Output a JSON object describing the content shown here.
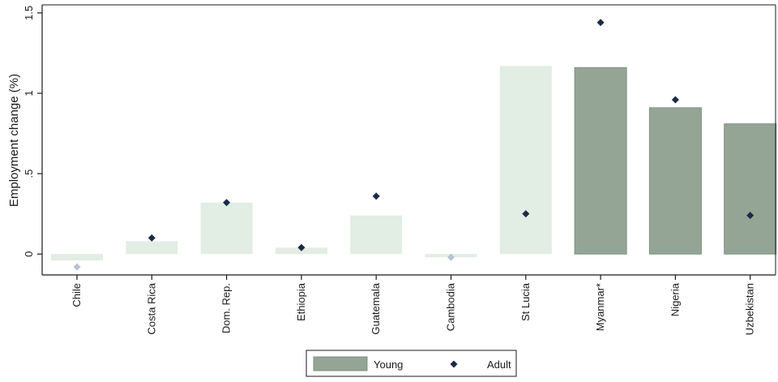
{
  "chart_data": {
    "type": "bar",
    "ylabel": "Employment change (%)",
    "ylim": [
      -0.13,
      1.55
    ],
    "yticks": [
      0,
      0.5,
      1,
      1.5
    ],
    "ytick_labels": [
      "0",
      ".5",
      "1",
      "1.5"
    ],
    "grid": false,
    "legend_position": "bottom-center",
    "categories": [
      "Chile",
      "Costa Rica",
      "Dom. Rep.",
      "Ethiopia",
      "Guatemala",
      "Cambodia",
      "St Lucia",
      "Myanmar*",
      "Nigeria",
      "Uzbekistan"
    ],
    "series": [
      {
        "name": "Young",
        "mark": "bar",
        "values": [
          -0.04,
          0.08,
          0.32,
          0.04,
          0.24,
          -0.02,
          1.17,
          1.16,
          0.91,
          0.81
        ],
        "highlighted": [
          false,
          false,
          false,
          false,
          false,
          false,
          false,
          true,
          true,
          true
        ]
      },
      {
        "name": "Adult",
        "mark": "diamond",
        "values": [
          -0.08,
          0.1,
          0.32,
          0.04,
          0.36,
          -0.02,
          0.25,
          1.44,
          0.96,
          0.24
        ],
        "highlighted": [
          false,
          true,
          true,
          true,
          true,
          false,
          true,
          true,
          true,
          true
        ]
      }
    ],
    "colors": {
      "bar_highlight": "#94a596",
      "bar_highlight_stroke": "#7e9082",
      "bar_faded": "#e2ede3",
      "marker_highlight": "#1b2a46",
      "marker_faded": "#b6c2d4",
      "axis": "#1a1a1a"
    }
  }
}
